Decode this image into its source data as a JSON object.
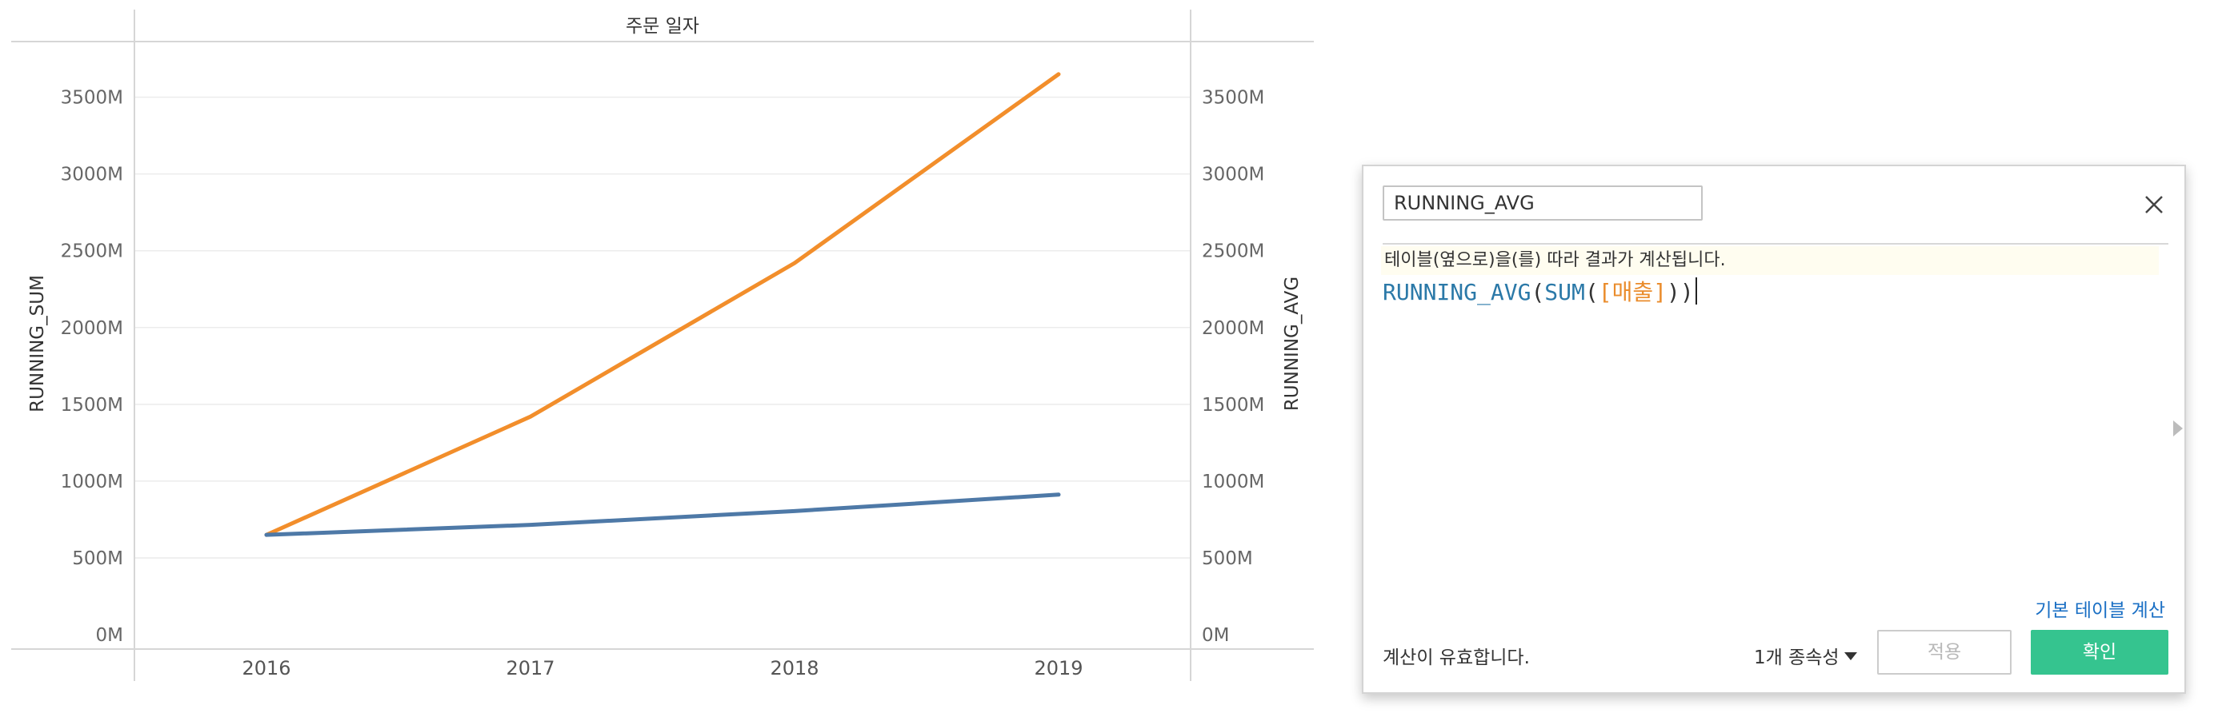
{
  "chart_data": {
    "type": "line",
    "title": "주문 일자",
    "x": [
      "2016",
      "2017",
      "2018",
      "2019"
    ],
    "ylabel_left": "RUNNING_SUM",
    "ylabel_right": "RUNNING_AVG",
    "ylim": [
      0,
      3800
    ],
    "y_ticks": [
      "0M",
      "500M",
      "1000M",
      "1500M",
      "2000M",
      "2500M",
      "3000M",
      "3500M"
    ],
    "y_tick_values": [
      0,
      500,
      1000,
      1500,
      2000,
      2500,
      3000,
      3500
    ],
    "grid": true,
    "series": [
      {
        "axis": "left",
        "color": "#f28e2b",
        "values": [
          650,
          1420,
          2420,
          3650
        ]
      },
      {
        "axis": "right",
        "color": "#4e79a7",
        "values": [
          650,
          715,
          805,
          912
        ]
      }
    ]
  },
  "dialog": {
    "name_value": "RUNNING_AVG",
    "compute_note": "테이블(옆으로)을(를) 따라 결과가 계산됩니다.",
    "formula": {
      "fn_outer": "RUNNING_AVG",
      "open1": "(",
      "fn_inner": "SUM",
      "open2": "(",
      "field": "[매출]",
      "close": "))"
    },
    "default_table_calc_link": "기본 테이블 계산",
    "validity_status": "계산이 유효합니다.",
    "dependency_label": "1개 종속성",
    "apply_label": "적용",
    "ok_label": "확인"
  },
  "icons": {
    "close": "close-icon",
    "expand": "expand-arrow-icon",
    "dropdown": "caret-down-icon"
  }
}
